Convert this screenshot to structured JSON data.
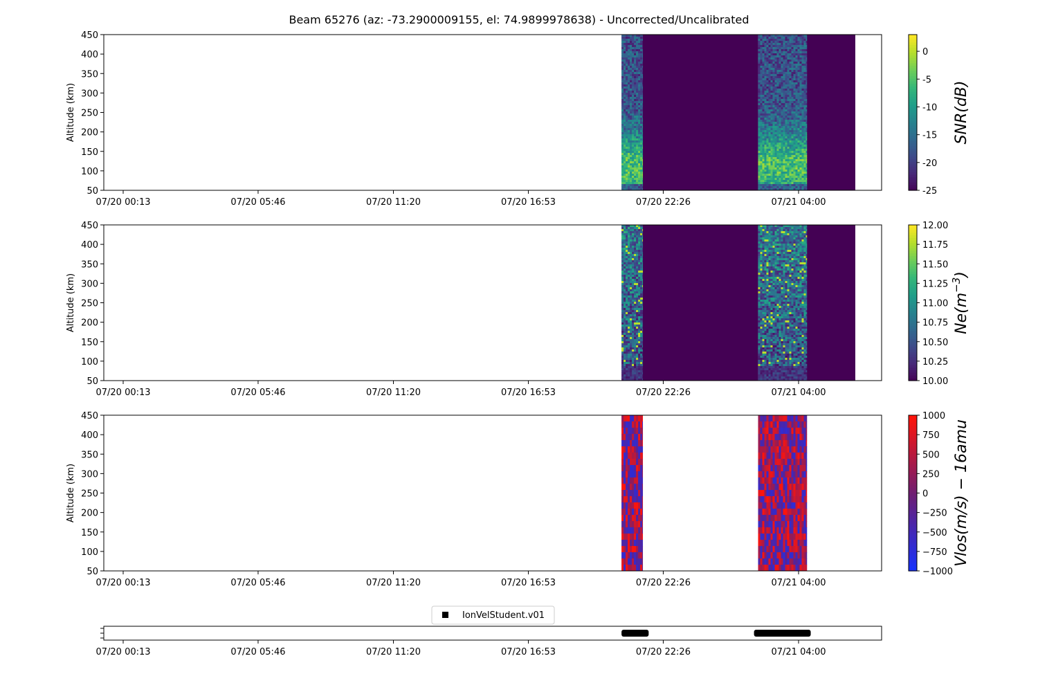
{
  "title": "Beam 65276 (az: -73.2900009155, el: 74.9899978638) - Uncorrected/Uncalibrated",
  "colors": {
    "viridis_dark": "#440154",
    "viridis_mid": "#21918c",
    "viridis_bright": "#fde725",
    "bwr_blue": "#1432ff",
    "bwr_red": "#ff1a0a"
  },
  "chart_data": [
    {
      "type": "heatmap",
      "id": "snr",
      "ylabel": "Altitude (km)",
      "ylim": [
        50,
        450
      ],
      "yticks": [
        50,
        100,
        150,
        200,
        250,
        300,
        350,
        400,
        450
      ],
      "xticks": [
        "07/20 00:13",
        "07/20 05:46",
        "07/20 11:20",
        "07/20 16:53",
        "07/20 22:26",
        "07/21 04:00"
      ],
      "colorbar_label": "SNR(dB)",
      "colorbar_ticks": [
        0,
        -5,
        -10,
        -15,
        -20,
        -25
      ],
      "clim": [
        -25,
        3
      ],
      "colormap": "viridis",
      "data_blocks": [
        {
          "start": "07/20 20:43",
          "end": "07/20 21:35",
          "value": "SNR ~ -20 to 0 dB, peak near 100-150 km"
        },
        {
          "start": "07/21 02:20",
          "end": "07/21 04:20",
          "value": "SNR ~ -20 to -5 dB, peak near 100-150 km"
        }
      ],
      "fill_blocks": [
        {
          "start": "07/20 21:35",
          "end": "07/21 02:20",
          "value": -25
        },
        {
          "start": "07/21 04:20",
          "end": "07/21 06:20",
          "value": -25
        }
      ]
    },
    {
      "type": "heatmap",
      "id": "ne",
      "ylabel": "Altitude (km)",
      "ylim": [
        50,
        450
      ],
      "yticks": [
        50,
        100,
        150,
        200,
        250,
        300,
        350,
        400,
        450
      ],
      "xticks": [
        "07/20 00:13",
        "07/20 05:46",
        "07/20 11:20",
        "07/20 16:53",
        "07/20 22:26",
        "07/21 04:00"
      ],
      "colorbar_label": "Ne(m^-3)",
      "colorbar_ticks": [
        "12.00",
        "11.75",
        "11.50",
        "11.25",
        "11.00",
        "10.75",
        "10.50",
        "10.25",
        "10.00"
      ],
      "clim": [
        10.0,
        12.0
      ],
      "colormap": "viridis",
      "data_blocks": [
        {
          "start": "07/20 20:43",
          "end": "07/20 21:35",
          "value": "log10 Ne ~ 10.0 to 12.0"
        },
        {
          "start": "07/21 02:20",
          "end": "07/21 04:20",
          "value": "log10 Ne ~ 10.0 to 12.0"
        }
      ],
      "fill_blocks": [
        {
          "start": "07/20 21:35",
          "end": "07/21 02:20",
          "value": 10.0
        },
        {
          "start": "07/21 04:20",
          "end": "07/21 06:20",
          "value": 10.0
        }
      ]
    },
    {
      "type": "heatmap",
      "id": "vlos",
      "ylabel": "Altitude (km)",
      "ylim": [
        50,
        450
      ],
      "yticks": [
        50,
        100,
        150,
        200,
        250,
        300,
        350,
        400,
        450
      ],
      "xticks": [
        "07/20 00:13",
        "07/20 05:46",
        "07/20 11:20",
        "07/20 16:53",
        "07/20 22:26",
        "07/21 04:00"
      ],
      "colorbar_label": "Vlos(m/s) − 16amu",
      "colorbar_ticks": [
        "1000",
        "750",
        "500",
        "250",
        "0",
        "−250",
        "−500",
        "−750",
        "−1000"
      ],
      "clim": [
        -1000,
        1000
      ],
      "colormap": "bwr",
      "data_blocks": [
        {
          "start": "07/20 20:43",
          "end": "07/20 21:35",
          "value": "Vlos ~ -1000 to 1000 m/s"
        },
        {
          "start": "07/21 02:20",
          "end": "07/21 04:20",
          "value": "Vlos ~ -1000 to 1000 m/s"
        }
      ]
    },
    {
      "type": "scatter",
      "id": "coverage",
      "legend": [
        "IonVelStudent.v01"
      ],
      "legend_position": "top-center",
      "xticks": [
        "07/20 00:13",
        "07/20 05:46",
        "07/20 11:20",
        "07/20 16:53",
        "07/20 22:26",
        "07/21 04:00"
      ],
      "segments": [
        {
          "start": "07/20 20:43",
          "end": "07/20 21:50"
        },
        {
          "start": "07/21 02:10",
          "end": "07/21 04:30"
        }
      ]
    }
  ]
}
